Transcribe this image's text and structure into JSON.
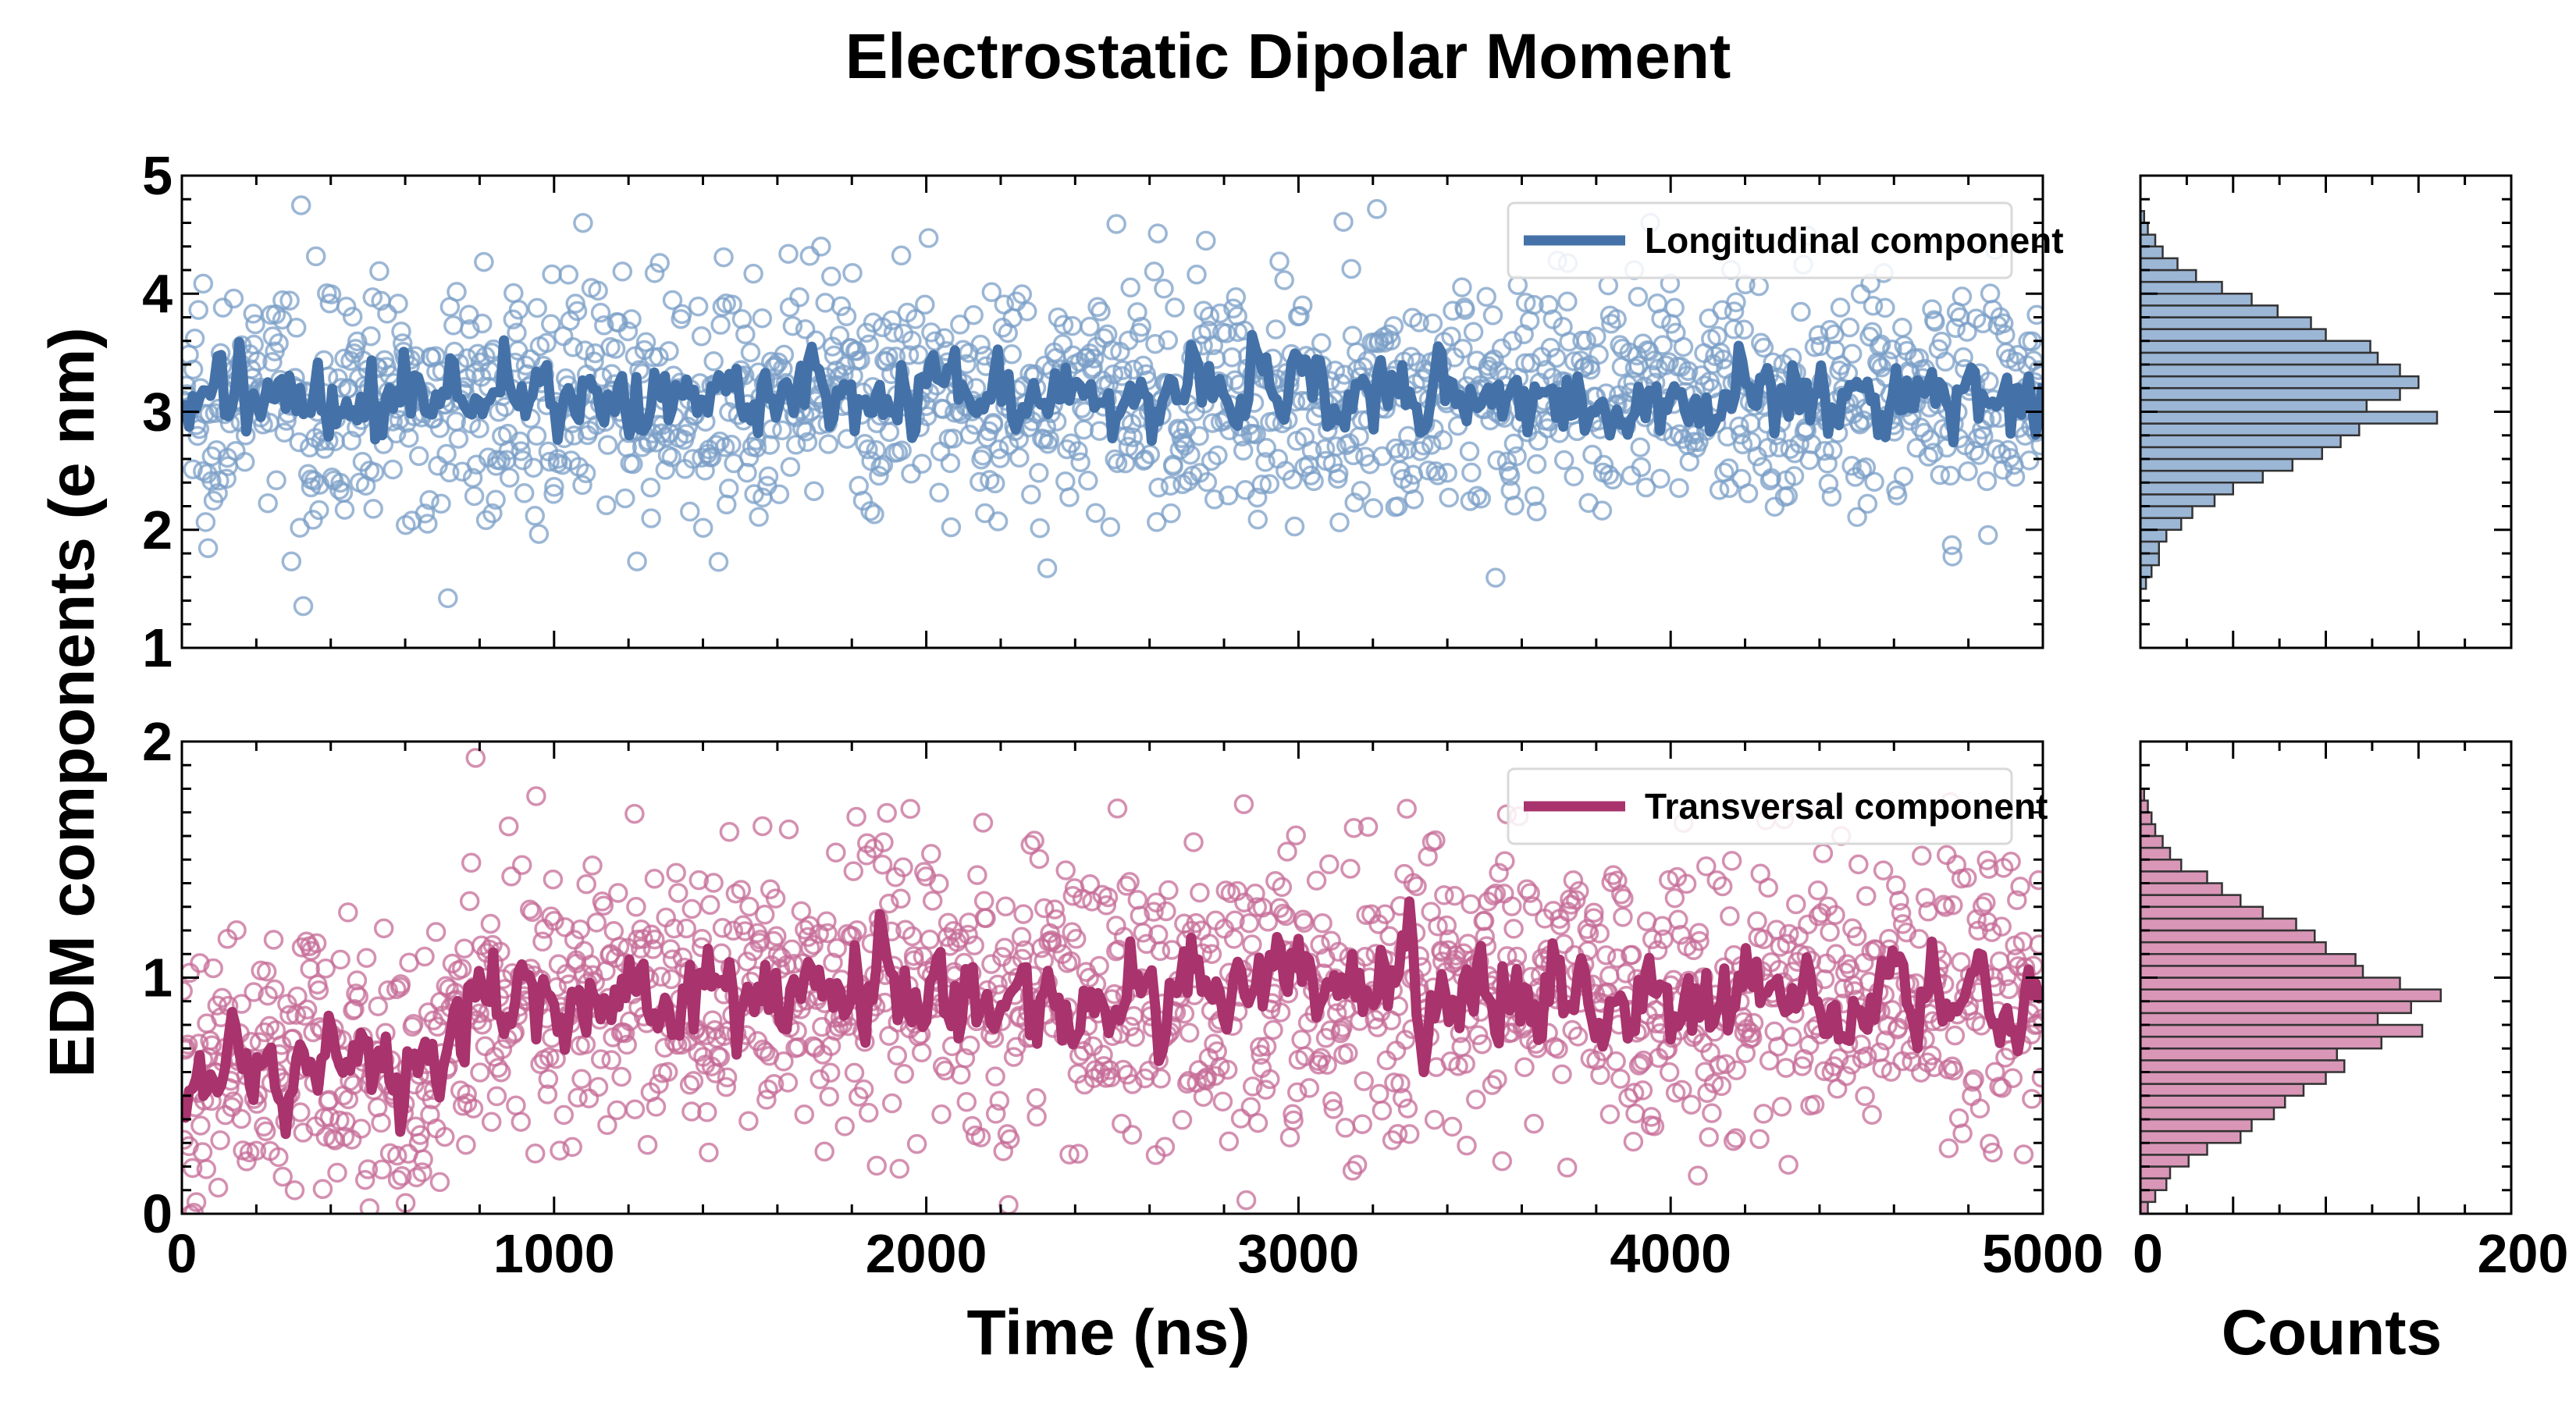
{
  "chart_data": {
    "type": "scatter",
    "title": "Electrostatic Dipolar Moment",
    "ylabel": "EDM components (e nm)",
    "xlabel": "Time (ns)",
    "hist_xlabel": "Counts",
    "xlim": [
      0,
      5000
    ],
    "x_ticks": [
      "0",
      "1000",
      "2000",
      "3000",
      "4000",
      "5000"
    ],
    "hist_xlim": [
      0,
      200
    ],
    "hist_ticks": [
      "0",
      "200"
    ],
    "panels": [
      {
        "name": "Longitudinal component",
        "legend": "Longitudinal component",
        "color": "#4472a8",
        "point_color": "#7b9fc7",
        "hist_fill": "#9cb6d6",
        "ylim": [
          1,
          5
        ],
        "y_ticks": [
          "1",
          "2",
          "3",
          "4",
          "5"
        ],
        "mean": 3.1,
        "std": 0.5,
        "mean_profile": [
          [
            0,
            3.1
          ],
          [
            5000,
            3.15
          ]
        ],
        "n_points": 1500,
        "hist_bin_width": 0.1,
        "hist_counts": [
          {
            "y": 1.55,
            "c": 3
          },
          {
            "y": 1.65,
            "c": 6
          },
          {
            "y": 1.75,
            "c": 10
          },
          {
            "y": 1.85,
            "c": 10
          },
          {
            "y": 1.95,
            "c": 14
          },
          {
            "y": 2.05,
            "c": 22
          },
          {
            "y": 2.15,
            "c": 28
          },
          {
            "y": 2.25,
            "c": 40
          },
          {
            "y": 2.35,
            "c": 50
          },
          {
            "y": 2.45,
            "c": 66
          },
          {
            "y": 2.55,
            "c": 82
          },
          {
            "y": 2.65,
            "c": 98
          },
          {
            "y": 2.75,
            "c": 108
          },
          {
            "y": 2.85,
            "c": 118
          },
          {
            "y": 2.95,
            "c": 160
          },
          {
            "y": 3.05,
            "c": 122
          },
          {
            "y": 3.15,
            "c": 140
          },
          {
            "y": 3.25,
            "c": 150
          },
          {
            "y": 3.35,
            "c": 140
          },
          {
            "y": 3.45,
            "c": 128
          },
          {
            "y": 3.55,
            "c": 124
          },
          {
            "y": 3.65,
            "c": 100
          },
          {
            "y": 3.75,
            "c": 92
          },
          {
            "y": 3.85,
            "c": 74
          },
          {
            "y": 3.95,
            "c": 60
          },
          {
            "y": 4.05,
            "c": 44
          },
          {
            "y": 4.15,
            "c": 30
          },
          {
            "y": 4.25,
            "c": 20
          },
          {
            "y": 4.35,
            "c": 12
          },
          {
            "y": 4.45,
            "c": 8
          },
          {
            "y": 4.55,
            "c": 4
          },
          {
            "y": 4.65,
            "c": 2
          }
        ]
      },
      {
        "name": "Transversal component",
        "legend": "Transversal component",
        "color": "#a8336d",
        "point_color": "#c66b97",
        "hist_fill": "#d996b7",
        "ylim": [
          0,
          2
        ],
        "y_ticks": [
          "0",
          "1",
          "2"
        ],
        "mean": 0.9,
        "std": 0.3,
        "mean_profile": [
          [
            0,
            0.6
          ],
          [
            700,
            0.65
          ],
          [
            800,
            0.95
          ],
          [
            5000,
            0.92
          ]
        ],
        "n_points": 1500,
        "hist_bin_width": 0.05,
        "hist_counts": [
          {
            "y": 0.025,
            "c": 4
          },
          {
            "y": 0.075,
            "c": 8
          },
          {
            "y": 0.125,
            "c": 14
          },
          {
            "y": 0.175,
            "c": 16
          },
          {
            "y": 0.225,
            "c": 26
          },
          {
            "y": 0.275,
            "c": 36
          },
          {
            "y": 0.325,
            "c": 54
          },
          {
            "y": 0.375,
            "c": 60
          },
          {
            "y": 0.425,
            "c": 72
          },
          {
            "y": 0.475,
            "c": 78
          },
          {
            "y": 0.525,
            "c": 88
          },
          {
            "y": 0.575,
            "c": 100
          },
          {
            "y": 0.625,
            "c": 110
          },
          {
            "y": 0.675,
            "c": 106
          },
          {
            "y": 0.725,
            "c": 130
          },
          {
            "y": 0.775,
            "c": 152
          },
          {
            "y": 0.825,
            "c": 128
          },
          {
            "y": 0.875,
            "c": 146
          },
          {
            "y": 0.925,
            "c": 162
          },
          {
            "y": 0.975,
            "c": 140
          },
          {
            "y": 1.025,
            "c": 120
          },
          {
            "y": 1.075,
            "c": 116
          },
          {
            "y": 1.125,
            "c": 100
          },
          {
            "y": 1.175,
            "c": 94
          },
          {
            "y": 1.225,
            "c": 84
          },
          {
            "y": 1.275,
            "c": 66
          },
          {
            "y": 1.325,
            "c": 54
          },
          {
            "y": 1.375,
            "c": 44
          },
          {
            "y": 1.425,
            "c": 36
          },
          {
            "y": 1.475,
            "c": 22
          },
          {
            "y": 1.525,
            "c": 16
          },
          {
            "y": 1.575,
            "c": 12
          },
          {
            "y": 1.625,
            "c": 8
          },
          {
            "y": 1.675,
            "c": 6
          },
          {
            "y": 1.725,
            "c": 4
          },
          {
            "y": 1.775,
            "c": 2
          }
        ]
      }
    ]
  }
}
